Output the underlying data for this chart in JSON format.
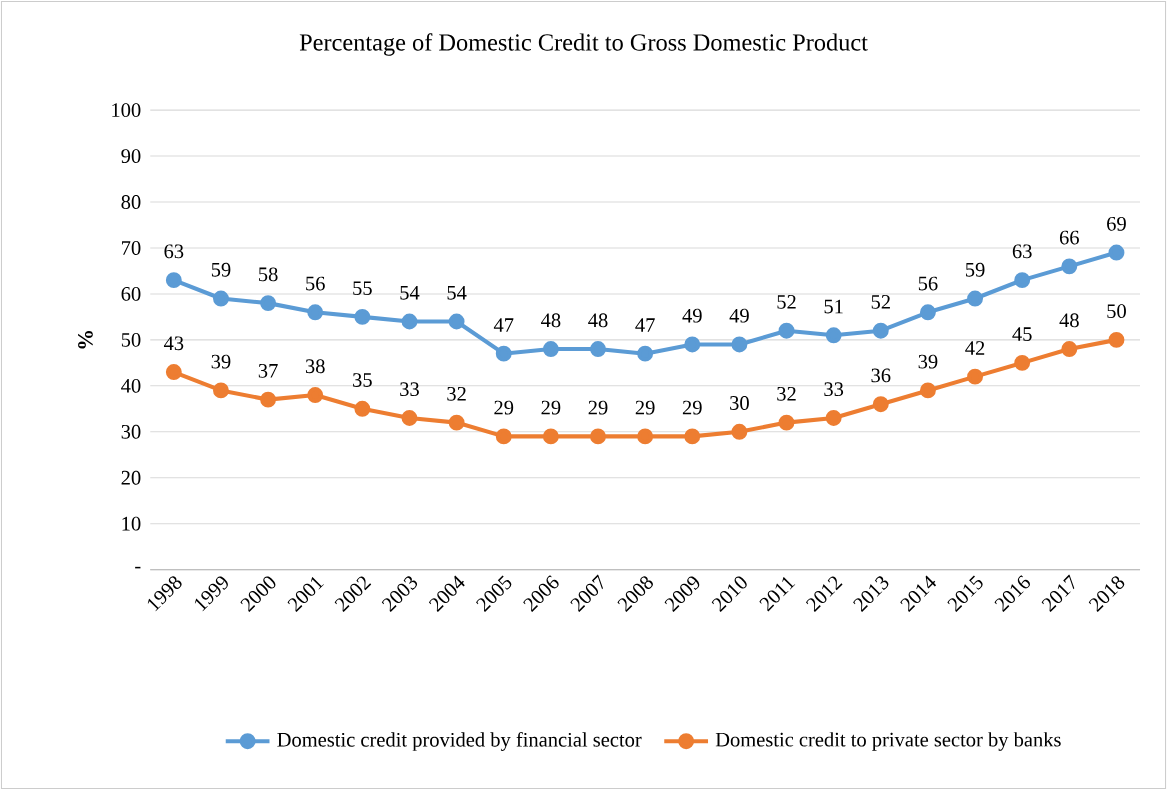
{
  "chart_data": {
    "type": "line",
    "title": "Percentage of Domestic Credit to Gross Domestic Product",
    "ylabel": "%",
    "categories": [
      "1998",
      "1999",
      "2000",
      "2001",
      "2002",
      "2003",
      "2004",
      "2005",
      "2006",
      "2007",
      "2008",
      "2009",
      "2010",
      "2011",
      "2012",
      "2013",
      "2014",
      "2015",
      "2016",
      "2017",
      "2018"
    ],
    "series": [
      {
        "name": "Domestic credit provided by financial sector",
        "color": "#5b9bd5",
        "values": [
          63,
          59,
          58,
          56,
          55,
          54,
          54,
          47,
          48,
          48,
          47,
          49,
          49,
          52,
          51,
          52,
          56,
          59,
          63,
          66,
          69
        ]
      },
      {
        "name": "Domestic credit to private sector by banks",
        "color": "#ed7d31",
        "values": [
          43,
          39,
          37,
          38,
          35,
          33,
          32,
          29,
          29,
          29,
          29,
          29,
          30,
          32,
          33,
          36,
          39,
          42,
          45,
          48,
          50
        ]
      }
    ],
    "ylim": [
      0,
      100
    ],
    "yticks": [
      {
        "value": 0,
        "label": "-"
      },
      10,
      20,
      30,
      40,
      50,
      60,
      70,
      80,
      90,
      100
    ],
    "grid": "y",
    "legend": "bottom",
    "marker": "circle",
    "line_style": "solid",
    "data_labels": true
  }
}
